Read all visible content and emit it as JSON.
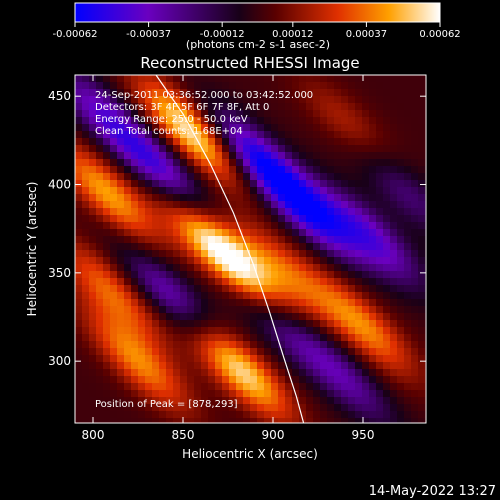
{
  "chart_data": {
    "type": "heatmap",
    "title": "Reconstructed RHESSI Image",
    "xlabel": "Heliocentric X (arcsec)",
    "ylabel": "Heliocentric Y (arcsec)",
    "xlim": [
      790,
      985
    ],
    "ylim": [
      265,
      462
    ],
    "xticks": [
      800,
      850,
      900,
      950
    ],
    "yticks": [
      300,
      350,
      400,
      450
    ],
    "colorbar": {
      "ticks": [
        "-0.00062",
        "-0.00037",
        "-0.00012",
        "0.00012",
        "0.00037",
        "0.00062"
      ],
      "range": [
        -0.00062,
        0.00062
      ],
      "units": "(photons cm-2 s-1 asec-2)",
      "colors": [
        "#0000ff",
        "#7a00b0",
        "#000000",
        "#b00000",
        "#ff7a00",
        "#ffff80",
        "#ffffff"
      ]
    },
    "annotations": {
      "time": "24-Sep-2011 03:36:52.000 to 03:42:52.000",
      "detectors": "Detectors: 3F 4F 5F 6F 7F 8F, Att 0",
      "energy": "Energy Range: 25.0 - 50.0 keV",
      "clean": "Clean     Total counts: 1.68E+04",
      "peak": "Position of Peak = [878,293]"
    },
    "peak_position": [
      878,
      293
    ],
    "limb_curve": [
      [
        835,
        462
      ],
      [
        850,
        440
      ],
      [
        865,
        412
      ],
      [
        878,
        384
      ],
      [
        889,
        355
      ],
      [
        898,
        328
      ],
      [
        906,
        302
      ],
      [
        913,
        280
      ],
      [
        917,
        265
      ]
    ],
    "features": [
      {
        "x": 855,
        "y": 430,
        "sign": 1,
        "amp": 0.00062
      },
      {
        "x": 808,
        "y": 395,
        "sign": 1,
        "amp": 0.00045
      },
      {
        "x": 860,
        "y": 375,
        "sign": 1,
        "amp": 0.00035
      },
      {
        "x": 882,
        "y": 350,
        "sign": 1,
        "amp": 0.00058
      },
      {
        "x": 880,
        "y": 297,
        "sign": 1,
        "amp": 0.0006
      },
      {
        "x": 905,
        "y": 352,
        "sign": 1,
        "amp": 0.0003
      },
      {
        "x": 950,
        "y": 320,
        "sign": 1,
        "amp": 0.0004
      },
      {
        "x": 945,
        "y": 430,
        "sign": 1,
        "amp": 0.00025
      },
      {
        "x": 825,
        "y": 300,
        "sign": 1,
        "amp": 0.0004
      },
      {
        "x": 810,
        "y": 340,
        "sign": 1,
        "amp": 0.00035
      },
      {
        "x": 840,
        "y": 405,
        "sign": -1,
        "amp": 0.00045
      },
      {
        "x": 890,
        "y": 415,
        "sign": -1,
        "amp": 0.0005
      },
      {
        "x": 920,
        "y": 385,
        "sign": -1,
        "amp": 0.00048
      },
      {
        "x": 955,
        "y": 370,
        "sign": -1,
        "amp": 0.0004
      },
      {
        "x": 845,
        "y": 335,
        "sign": -1,
        "amp": 0.00042
      },
      {
        "x": 900,
        "y": 325,
        "sign": -1,
        "amp": 0.00035
      },
      {
        "x": 805,
        "y": 440,
        "sign": -1,
        "amp": 0.00035
      },
      {
        "x": 940,
        "y": 290,
        "sign": -1,
        "amp": 0.0003
      },
      {
        "x": 970,
        "y": 400,
        "sign": -1,
        "amp": 0.0003
      }
    ]
  },
  "footer": {
    "date": "14-May-2022 13:27"
  }
}
